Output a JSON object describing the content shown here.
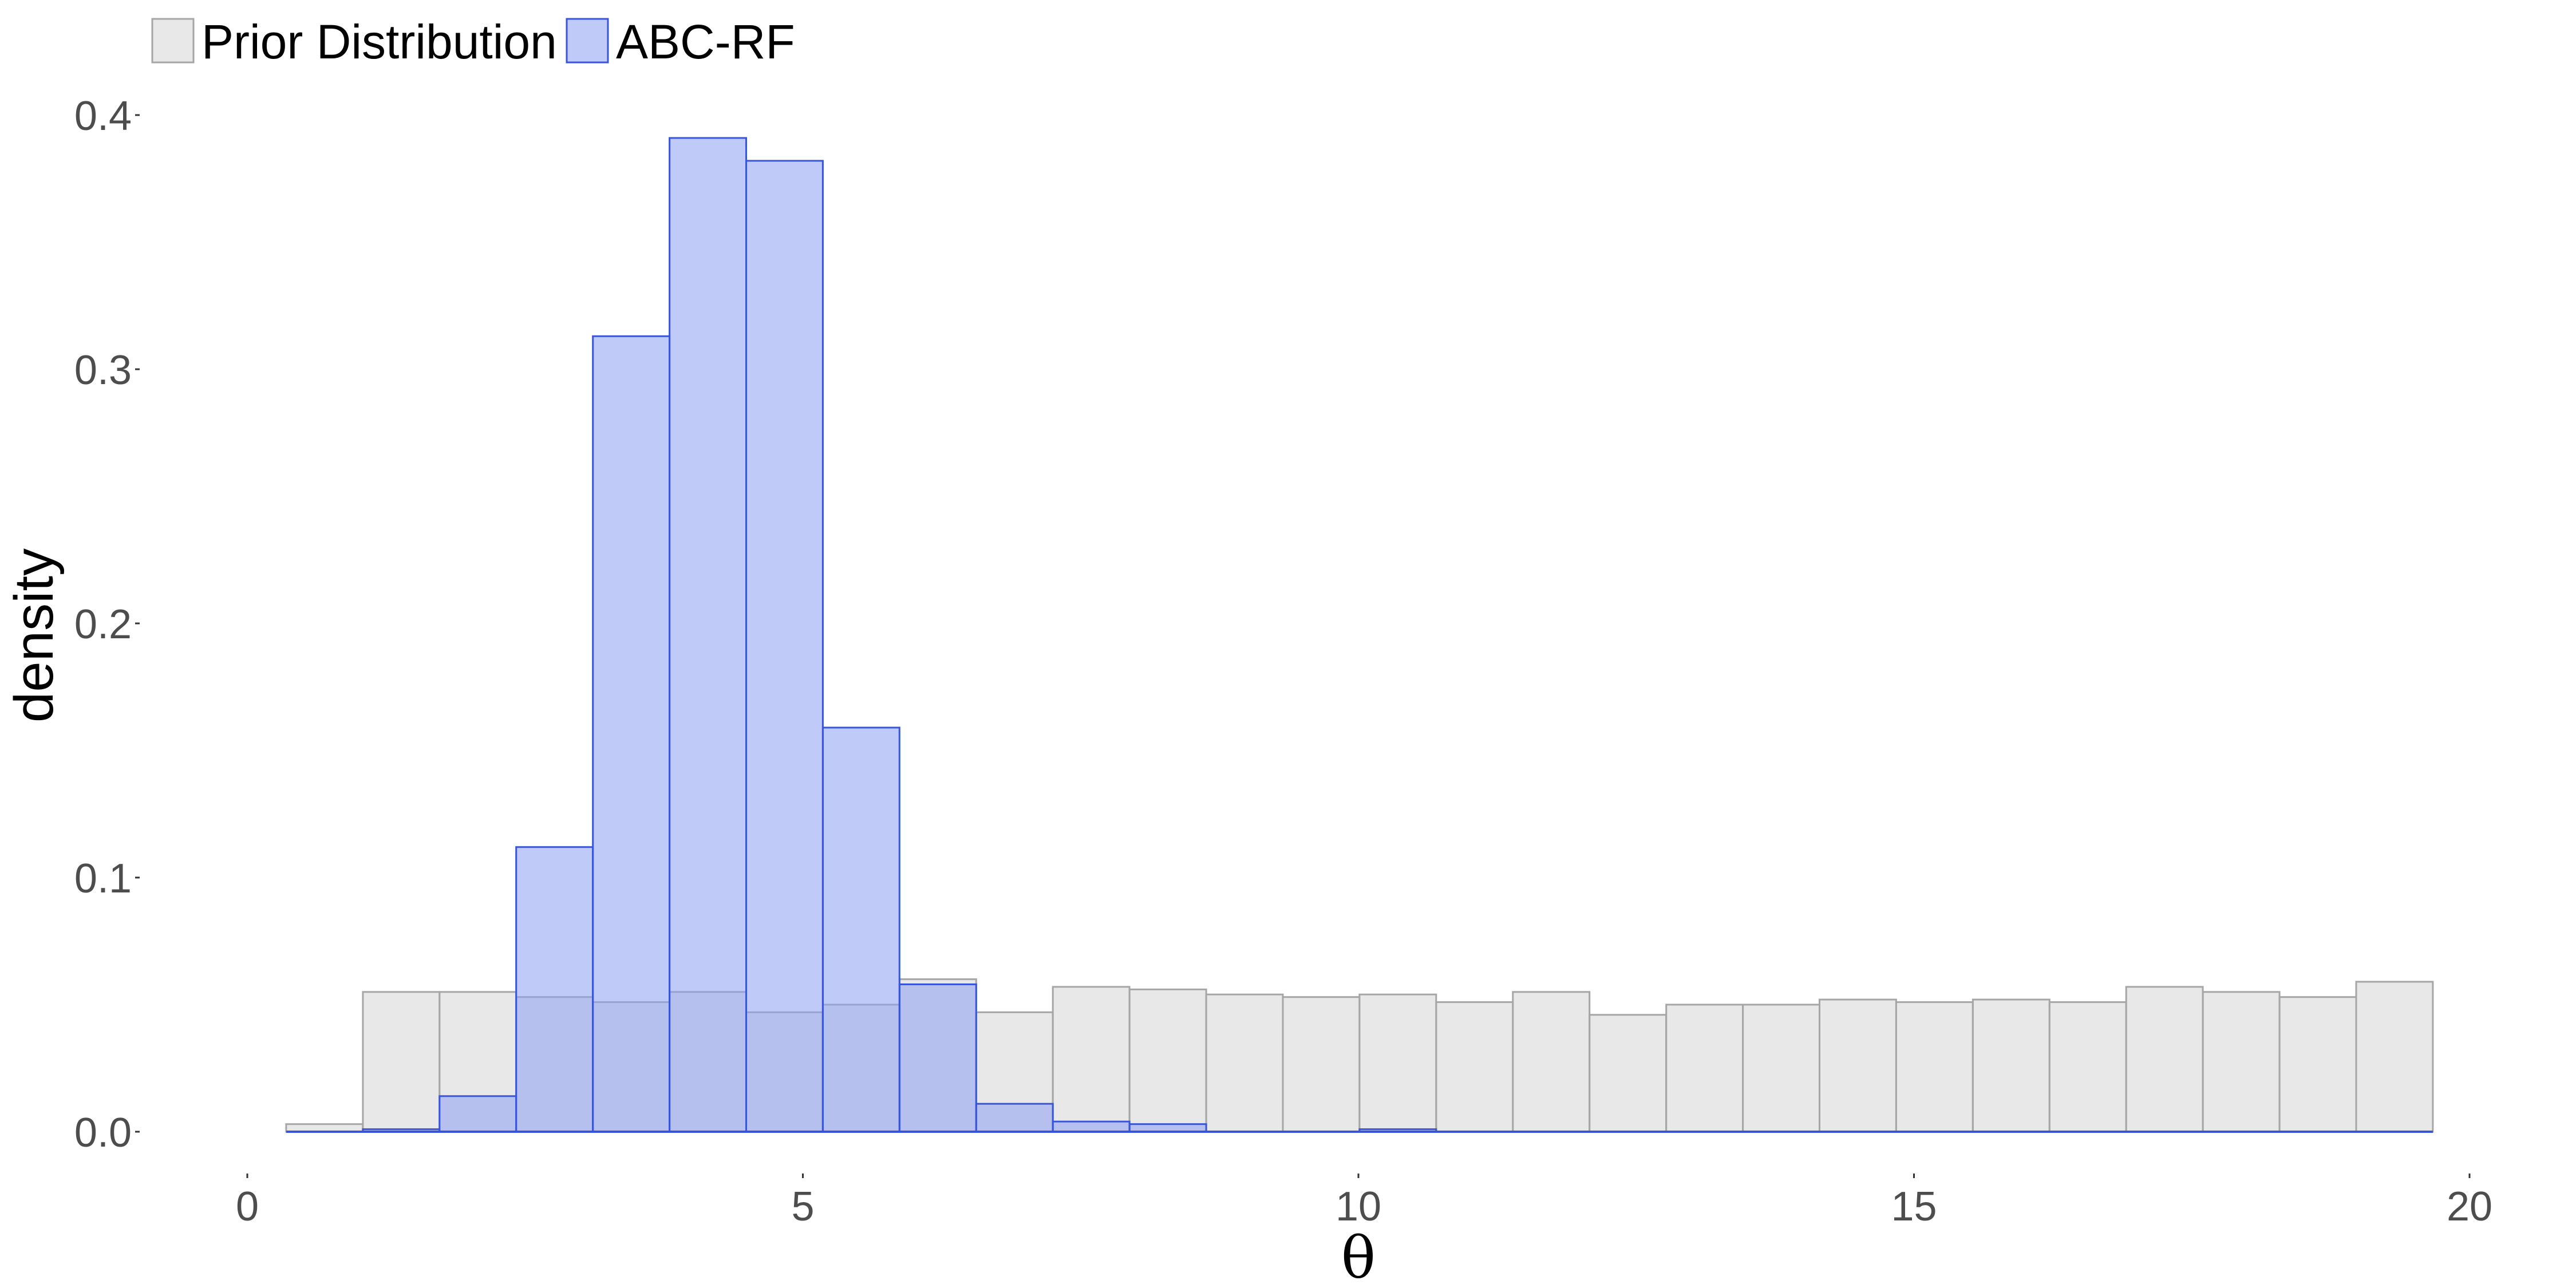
{
  "chart_data": {
    "type": "bar",
    "subtype": "overlaid-histogram",
    "xlabel": "θ",
    "ylabel": "density",
    "xlim": [
      0,
      20
    ],
    "ylim": [
      0,
      0.4
    ],
    "x_ticks": [
      0,
      5,
      10,
      15,
      20
    ],
    "y_ticks": [
      0.0,
      0.1,
      0.2,
      0.3,
      0.4
    ],
    "x_tick_labels": [
      "0",
      "5",
      "10",
      "15",
      "20"
    ],
    "y_tick_labels": [
      "0.0",
      "0.1",
      "0.2",
      "0.3",
      "0.4"
    ],
    "grid": false,
    "legend_position": "top-left",
    "bin_width": 0.69,
    "bin_starts": [
      0.35,
      1.04,
      1.73,
      2.42,
      3.11,
      3.8,
      4.49,
      5.18,
      5.87,
      6.56,
      7.25,
      7.94,
      8.63,
      9.32,
      10.01,
      10.7,
      11.39,
      12.08,
      12.77,
      13.46,
      14.15,
      14.84,
      15.53,
      16.22,
      16.91,
      17.6,
      18.29,
      18.98
    ],
    "series": [
      {
        "name": "Prior Distribution",
        "color": "#d9d9d9",
        "stroke": "#a6a6a6",
        "opacity": 0.6,
        "values": [
          0.003,
          0.055,
          0.055,
          0.053,
          0.051,
          0.055,
          0.047,
          0.05,
          0.06,
          0.047,
          0.057,
          0.056,
          0.054,
          0.053,
          0.054,
          0.051,
          0.055,
          0.046,
          0.05,
          0.05,
          0.052,
          0.051,
          0.052,
          0.051,
          0.057,
          0.055,
          0.053,
          0.059
        ]
      },
      {
        "name": "ABC-RF",
        "color": "#8c9ef2",
        "stroke": "#3a55d9",
        "opacity": 0.55,
        "values": [
          0.0,
          0.001,
          0.014,
          0.112,
          0.313,
          0.391,
          0.382,
          0.159,
          0.058,
          0.011,
          0.004,
          0.003,
          0.0,
          0.0,
          0.001,
          0.0,
          0.0,
          0.0,
          0.0,
          0.0,
          0.0,
          0.0,
          0.0,
          0.0,
          0.0,
          0.0,
          0.0,
          0.0
        ]
      }
    ]
  }
}
